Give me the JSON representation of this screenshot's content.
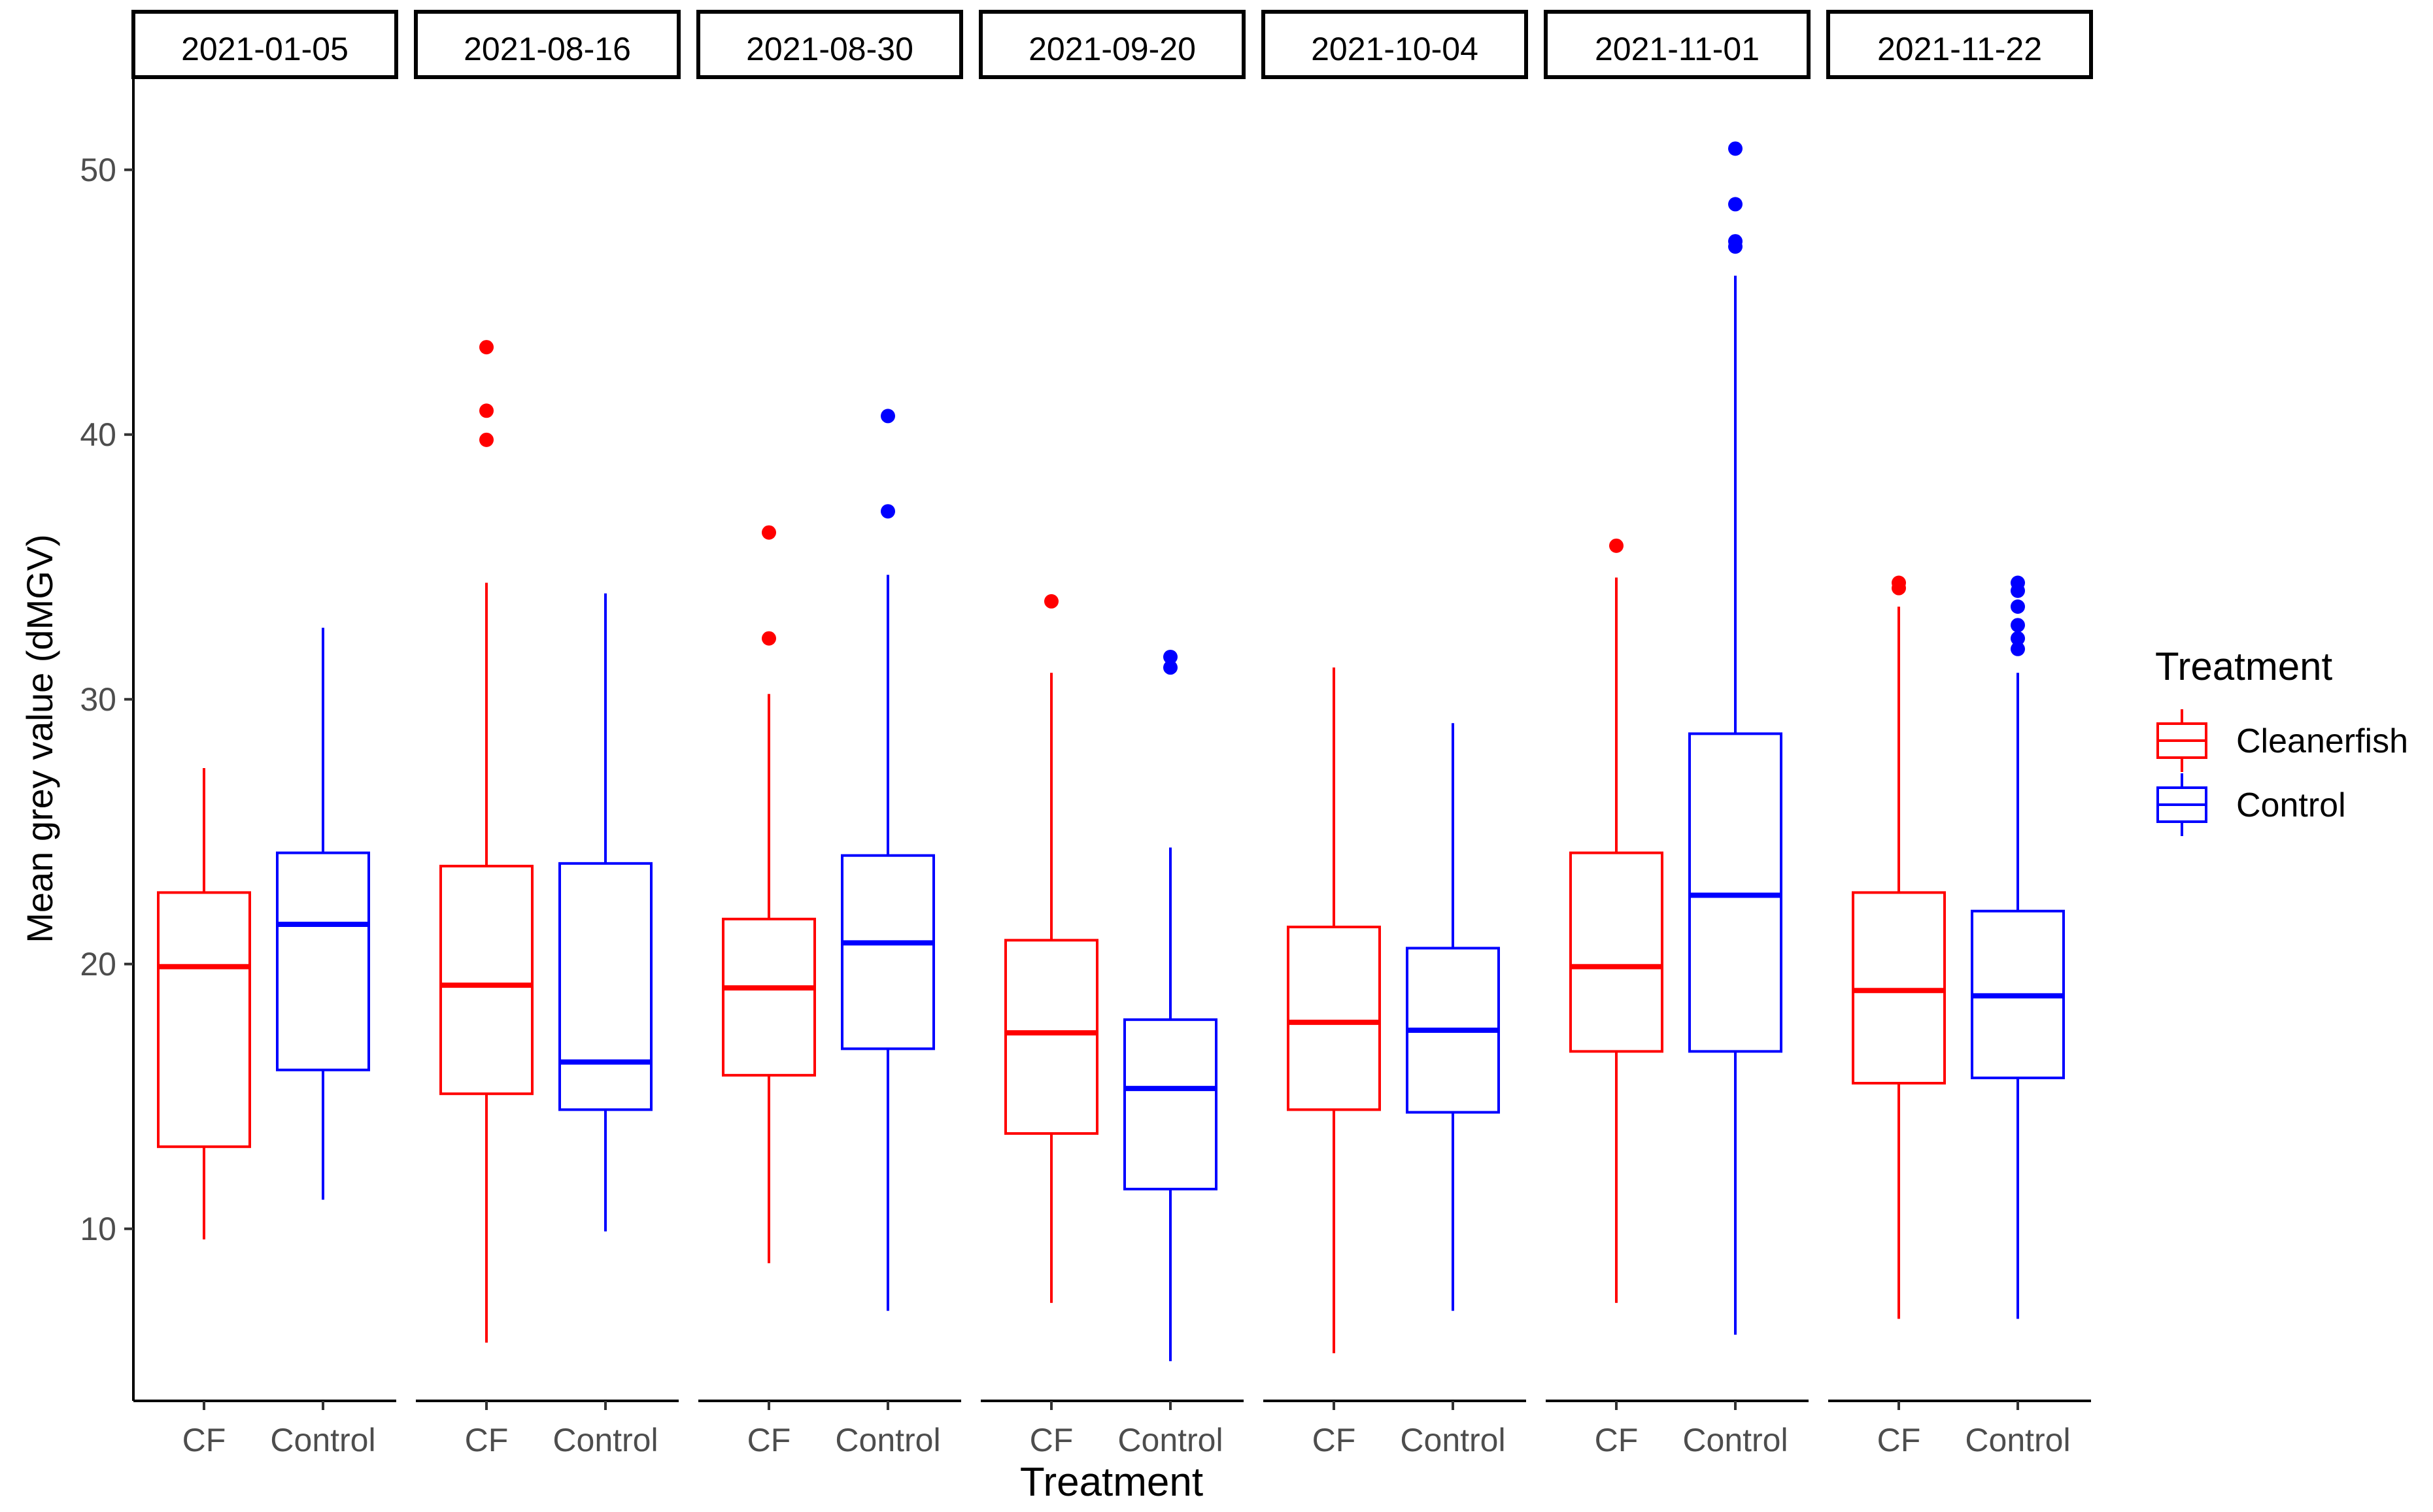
{
  "chart_data": {
    "type": "boxplot",
    "facet_by": "date",
    "xlabel": "Treatment",
    "ylabel": "Mean grey value (dMGV)",
    "yticks": [
      10,
      20,
      30,
      40,
      50
    ],
    "ylim": [
      3.5,
      53.5
    ],
    "legend": {
      "title": "Treatment",
      "position": "right",
      "entries": [
        {
          "label": "Cleanerfish",
          "color": "#ff0000"
        },
        {
          "label": "Control",
          "color": "#0000ff"
        }
      ]
    },
    "categories": [
      "CF",
      "Control"
    ],
    "series_colors": {
      "CF": "#ff0000",
      "Control": "#0000ff"
    },
    "panels": [
      {
        "date": "2021-01-05",
        "boxes": [
          {
            "group": "CF",
            "min": 9.6,
            "q1": 13.1,
            "median": 19.9,
            "q3": 22.7,
            "max": 27.4,
            "outliers": []
          },
          {
            "group": "Control",
            "min": 11.1,
            "q1": 16.0,
            "median": 21.5,
            "q3": 24.2,
            "max": 32.7,
            "outliers": []
          }
        ]
      },
      {
        "date": "2021-08-16",
        "boxes": [
          {
            "group": "CF",
            "min": 5.7,
            "q1": 15.1,
            "median": 19.2,
            "q3": 23.7,
            "max": 34.4,
            "outliers": [
              39.8,
              40.9,
              43.3
            ]
          },
          {
            "group": "Control",
            "min": 9.9,
            "q1": 14.5,
            "median": 16.3,
            "q3": 23.8,
            "max": 34.0,
            "outliers": []
          }
        ]
      },
      {
        "date": "2021-08-30",
        "boxes": [
          {
            "group": "CF",
            "min": 8.7,
            "q1": 15.8,
            "median": 19.1,
            "q3": 21.7,
            "max": 30.2,
            "outliers": [
              32.3,
              36.3
            ]
          },
          {
            "group": "Control",
            "min": 6.9,
            "q1": 16.8,
            "median": 20.8,
            "q3": 24.1,
            "max": 34.7,
            "outliers": [
              37.1,
              40.7
            ]
          }
        ]
      },
      {
        "date": "2021-09-20",
        "boxes": [
          {
            "group": "CF",
            "min": 7.2,
            "q1": 13.6,
            "median": 17.4,
            "q3": 20.9,
            "max": 31.0,
            "outliers": [
              33.7
            ]
          },
          {
            "group": "Control",
            "min": 5.0,
            "q1": 11.5,
            "median": 15.3,
            "q3": 17.9,
            "max": 24.4,
            "outliers": [
              31.2,
              31.6
            ]
          }
        ]
      },
      {
        "date": "2021-10-04",
        "boxes": [
          {
            "group": "CF",
            "min": 5.3,
            "q1": 14.5,
            "median": 17.8,
            "q3": 21.4,
            "max": 31.2,
            "outliers": []
          },
          {
            "group": "Control",
            "min": 6.9,
            "q1": 14.4,
            "median": 17.5,
            "q3": 20.6,
            "max": 29.1,
            "outliers": []
          }
        ]
      },
      {
        "date": "2021-11-01",
        "boxes": [
          {
            "group": "CF",
            "min": 7.2,
            "q1": 16.7,
            "median": 19.9,
            "q3": 24.2,
            "max": 34.6,
            "outliers": [
              35.8
            ]
          },
          {
            "group": "Control",
            "min": 6.0,
            "q1": 16.7,
            "median": 22.6,
            "q3": 28.7,
            "max": 46.0,
            "outliers": [
              47.1,
              47.3,
              48.7,
              50.8
            ]
          }
        ]
      },
      {
        "date": "2021-11-22",
        "boxes": [
          {
            "group": "CF",
            "min": 6.6,
            "q1": 15.5,
            "median": 19.0,
            "q3": 22.7,
            "max": 33.5,
            "outliers": [
              34.2,
              34.4
            ]
          },
          {
            "group": "Control",
            "min": 6.6,
            "q1": 15.7,
            "median": 18.8,
            "q3": 22.0,
            "max": 31.0,
            "outliers": [
              31.9,
              32.3,
              32.8,
              33.5,
              34.1,
              34.4
            ]
          }
        ]
      }
    ]
  }
}
